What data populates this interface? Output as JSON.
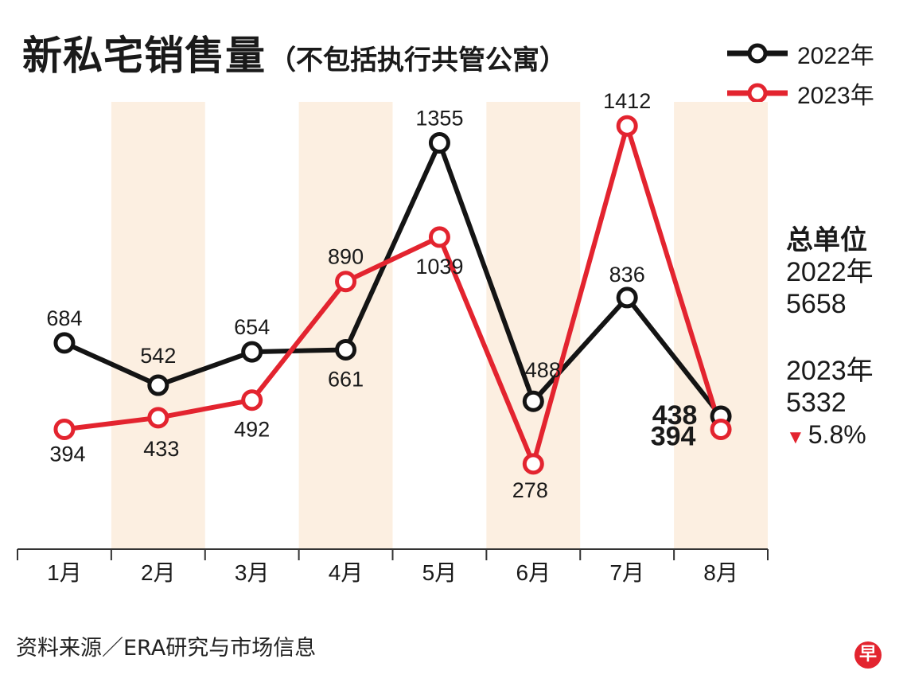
{
  "title": {
    "main": "新私宅销售量",
    "sub": "（不包括执行共管公寓）"
  },
  "legend": [
    {
      "label": "2022年",
      "color": "#141414"
    },
    {
      "label": "2023年",
      "color": "#e3242f"
    }
  ],
  "totals": {
    "header": "总单位",
    "y2022_label": "2022年",
    "y2022_value": "5658",
    "y2023_label": "2023年",
    "y2023_value": "5332",
    "change_icon": "down-triangle-icon",
    "change_text": "5.8%"
  },
  "source": "资料来源／ERA研究与市场信息",
  "logo_text": "早",
  "colors": {
    "band": "#fcefe1",
    "black": "#141414",
    "red": "#e3242f"
  },
  "chart_data": {
    "type": "line",
    "title": "新私宅销售量（不包括执行共管公寓）",
    "categories": [
      "1月",
      "2月",
      "3月",
      "4月",
      "5月",
      "6月",
      "7月",
      "8月"
    ],
    "series": [
      {
        "name": "2022年",
        "values": [
          684,
          542,
          654,
          661,
          1355,
          488,
          836,
          438
        ]
      },
      {
        "name": "2023年",
        "values": [
          394,
          433,
          492,
          890,
          1039,
          278,
          1412,
          394
        ]
      }
    ],
    "ylim": [
      0,
      1500
    ],
    "grid": false
  }
}
